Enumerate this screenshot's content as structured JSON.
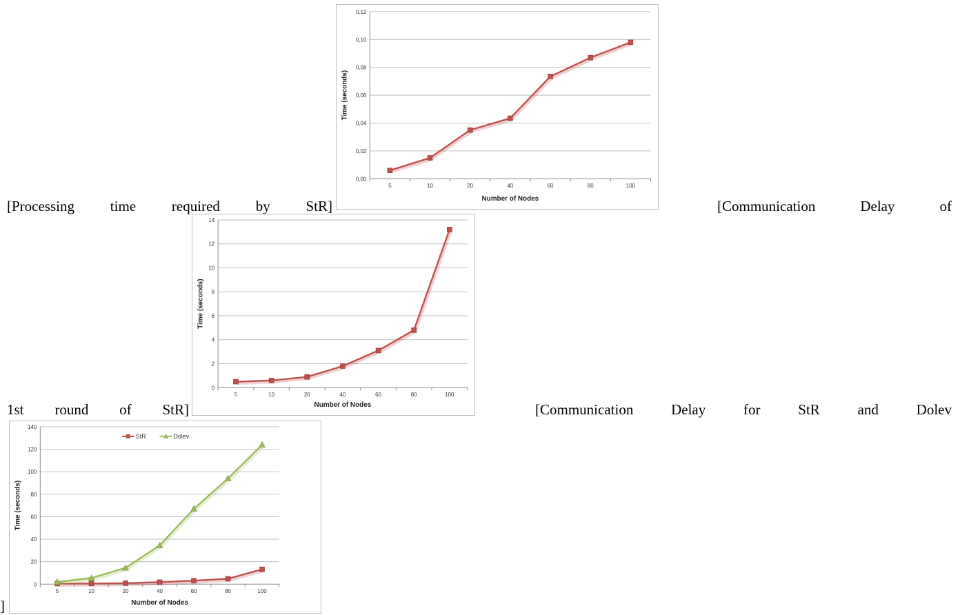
{
  "captions": {
    "caption1": [
      "[Processing",
      "time",
      "required",
      "by",
      "StR]"
    ],
    "caption2_line1": [
      "[Communication",
      "Delay",
      "of"
    ],
    "caption2_line2": [
      "1st",
      "round",
      "of",
      "StR]"
    ],
    "caption3_line1": [
      "[Communication",
      "Delay",
      "for",
      "StR",
      "and",
      "Dolev"
    ],
    "caption3_line2": "]"
  },
  "chart_data": [
    {
      "type": "line",
      "categories": [
        "5",
        "10",
        "20",
        "40",
        "60",
        "80",
        "100"
      ],
      "series": [
        {
          "color": "#c0504d",
          "values": [
            0.006,
            0.015,
            0.035,
            0.0435,
            0.0735,
            0.087,
            0.098
          ]
        }
      ],
      "title": "",
      "xlabel": "Number of Nodes",
      "ylabel": "Time (seconds)",
      "ylim": [
        0,
        0.12
      ],
      "ytick_labels": [
        "0,00",
        "0,02",
        "0,04",
        "0,06",
        "0,08",
        "0,10",
        "0,12"
      ],
      "grid": true
    },
    {
      "type": "line",
      "categories": [
        "5",
        "10",
        "20",
        "40",
        "60",
        "80",
        "100"
      ],
      "series": [
        {
          "color": "#c0504d",
          "values": [
            0.5,
            0.6,
            0.9,
            1.8,
            3.1,
            4.8,
            13.2
          ]
        }
      ],
      "title": "",
      "xlabel": "Number of Nodes",
      "ylabel": "Time (seconds)",
      "ylim": [
        0,
        14
      ],
      "ytick_labels": [
        "0",
        "2",
        "4",
        "6",
        "8",
        "10",
        "12",
        "14"
      ],
      "grid": true
    },
    {
      "type": "line",
      "categories": [
        "5",
        "10",
        "20",
        "40",
        "60",
        "80",
        "100"
      ],
      "series": [
        {
          "name": "StR",
          "color": "#c0504d",
          "marker": "square",
          "values": [
            0.5,
            0.6,
            0.9,
            1.8,
            3.1,
            4.8,
            13.2
          ]
        },
        {
          "name": "Dolev",
          "color": "#9bbb59",
          "marker": "triangle",
          "values": [
            2,
            5.5,
            14.5,
            34.5,
            67,
            94,
            124
          ]
        }
      ],
      "title": "",
      "xlabel": "Number of Nodes",
      "ylabel": "Time (seconds)",
      "ylim": [
        0,
        140
      ],
      "ytick_labels": [
        "0",
        "20",
        "40",
        "60",
        "80",
        "100",
        "120",
        "140"
      ],
      "legend": "top-center",
      "grid": true
    }
  ]
}
